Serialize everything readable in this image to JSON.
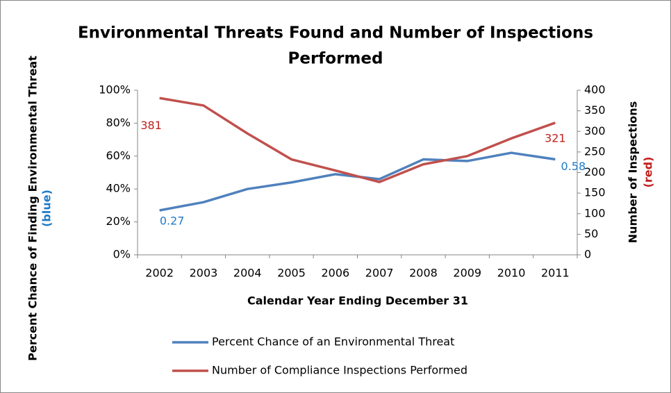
{
  "chart_data": {
    "type": "line",
    "title": [
      "Environmental Threats Found and Number of Inspections",
      "Performed"
    ],
    "xlabel": "Calendar Year Ending December 31",
    "ylabel": "Percent Chance of Finding Environmental Threat",
    "ylabel_note": "(blue)",
    "y2label": "Number of Inspections",
    "y2label_note": "(red)",
    "categories": [
      "2002",
      "2003",
      "2004",
      "2005",
      "2006",
      "2007",
      "2008",
      "2009",
      "2010",
      "2011"
    ],
    "series": [
      {
        "name": "Percent Chance of an Environmental Threat",
        "color": "#4f81bd",
        "values": [
          0.27,
          0.32,
          0.4,
          0.44,
          0.49,
          0.46,
          0.58,
          0.57,
          0.62,
          0.58
        ],
        "value_labels": [
          "0.27",
          null,
          null,
          null,
          null,
          null,
          null,
          null,
          null,
          "0.58"
        ],
        "label_color": "#1f7ac8"
      },
      {
        "name": "Number of Compliance Inspections Performed",
        "color": "#c0504d",
        "axis": "y2",
        "values": [
          381,
          363,
          295,
          232,
          205,
          177,
          220,
          240,
          283,
          321
        ],
        "value_labels": [
          "381",
          null,
          null,
          null,
          null,
          null,
          null,
          null,
          null,
          "321"
        ],
        "label_color": "#c0201d"
      }
    ],
    "ylim": [
      0,
      1
    ],
    "yticks": [
      {
        "value": 0,
        "label": "0%"
      },
      {
        "value": 0.2,
        "label": "20%"
      },
      {
        "value": 0.4,
        "label": "40%"
      },
      {
        "value": 0.6,
        "label": "60%"
      },
      {
        "value": 0.8,
        "label": "80%"
      },
      {
        "value": 1,
        "label": "100%"
      }
    ],
    "y2lim": [
      0,
      400
    ],
    "y2ticks": [
      0,
      50,
      100,
      150,
      200,
      250,
      300,
      350,
      400
    ],
    "grid": false,
    "legend": "bottom"
  }
}
